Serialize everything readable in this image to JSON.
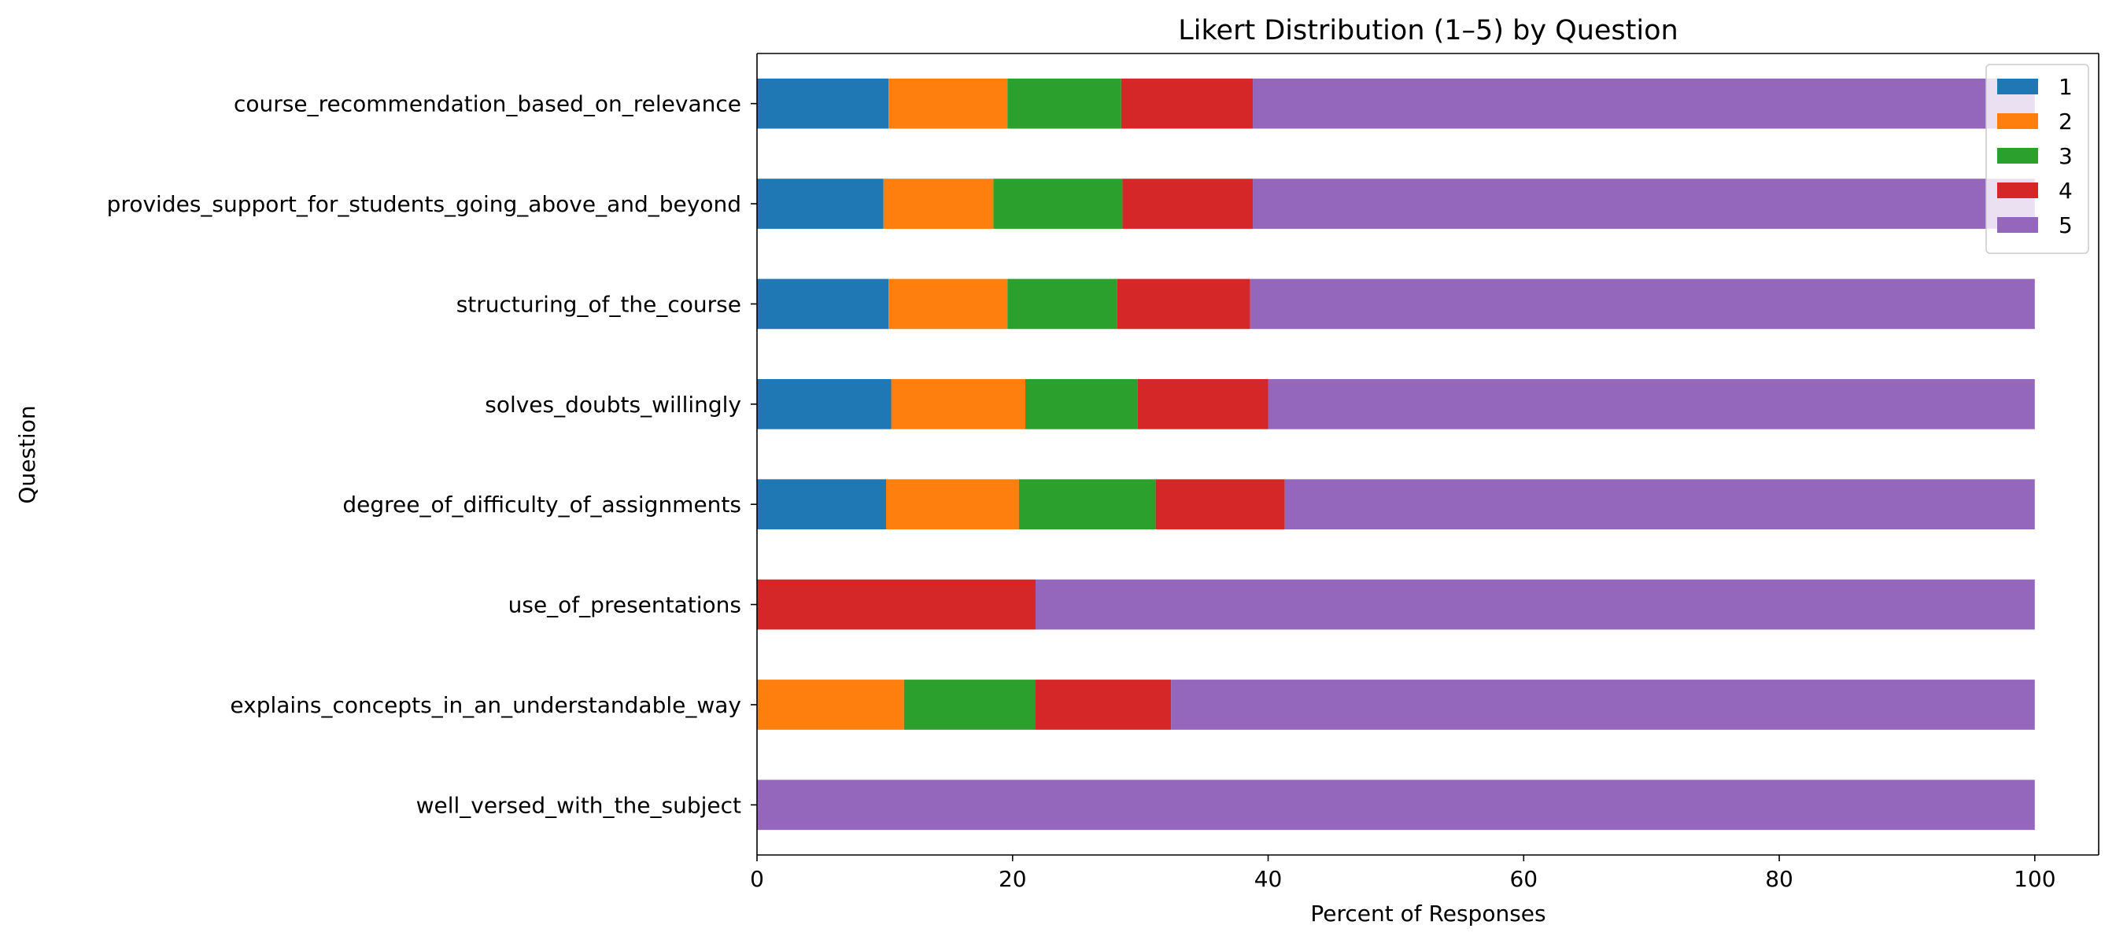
{
  "chart_data": {
    "type": "bar",
    "orientation": "horizontal",
    "stacked": true,
    "title": "Likert Distribution (1–5) by Question",
    "xlabel": "Percent of Responses",
    "ylabel": "Question",
    "xlim": [
      0,
      105
    ],
    "xticks": [
      0,
      20,
      40,
      60,
      80,
      100
    ],
    "legend_position": "top-right",
    "grid": false,
    "categories": [
      "course_recommendation_based_on_relevance",
      "provides_support_for_students_going_above_and_beyond",
      "structuring_of_the_course",
      "solves_doubts_willingly",
      "degree_of_difficulty_of_assignments",
      "use_of_presentations",
      "explains_concepts_in_an_understandable_way",
      "well_versed_with_the_subject"
    ],
    "series": [
      {
        "name": "1",
        "color": "#1f77b4",
        "values": [
          10.3,
          9.9,
          10.3,
          10.5,
          10.1,
          0,
          0,
          0
        ]
      },
      {
        "name": "2",
        "color": "#ff7f0e",
        "values": [
          9.3,
          8.6,
          9.3,
          10.5,
          10.4,
          0,
          11.5,
          0
        ]
      },
      {
        "name": "3",
        "color": "#2ca02c",
        "values": [
          8.9,
          10.1,
          8.6,
          8.8,
          10.7,
          0,
          10.3,
          0
        ]
      },
      {
        "name": "4",
        "color": "#d62728",
        "values": [
          10.3,
          10.2,
          10.4,
          10.2,
          10.1,
          21.8,
          10.6,
          0
        ]
      },
      {
        "name": "5",
        "color": "#9467bd",
        "values": [
          61.2,
          61.2,
          61.4,
          60.0,
          58.7,
          78.2,
          67.6,
          100
        ]
      }
    ]
  }
}
